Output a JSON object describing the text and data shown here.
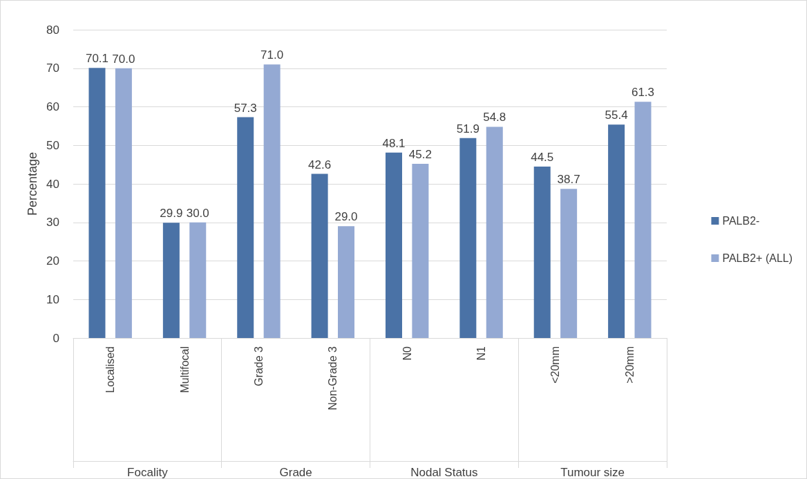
{
  "chart_data": {
    "type": "bar",
    "ylabel": "Percentage",
    "categories": [
      "Localised",
      "Multifocal",
      "Grade 3",
      "Non-Grade 3",
      "N0",
      "N1",
      "<20mm",
      ">20mm"
    ],
    "annotations": [
      "Focality",
      "Grade",
      "Nodal Status",
      "Tumour size"
    ],
    "series": [
      {
        "name": "PALB2-",
        "color": "#4a72a6",
        "values": [
          70.1,
          29.9,
          57.3,
          42.6,
          48.1,
          51.9,
          44.5,
          55.4
        ],
        "value_labels": [
          "70.1",
          "29.9",
          "57.3",
          "42.6",
          "48.1",
          "51.9",
          "44.5",
          "55.4"
        ]
      },
      {
        "name": "PALB2+ (ALL)",
        "color": "#94a9d3",
        "values": [
          70.0,
          30.0,
          71.0,
          29.0,
          45.2,
          54.8,
          38.7,
          61.3
        ],
        "value_labels": [
          "70.0",
          "30.0",
          "71.0",
          "29.0",
          "45.2",
          "54.8",
          "38.7",
          "61.3"
        ]
      }
    ],
    "ylim": [
      0,
      80
    ],
    "yticks": [
      0,
      10,
      20,
      30,
      40,
      50,
      60,
      70,
      80
    ],
    "grid": "y",
    "legend": "right"
  }
}
